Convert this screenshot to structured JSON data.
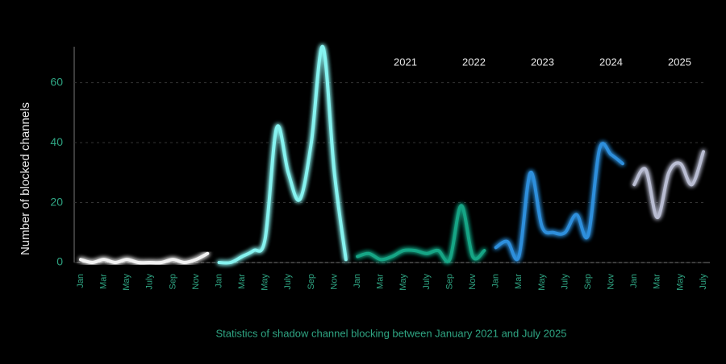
{
  "chart_data": {
    "type": "line",
    "y_label": "Number of blocked channels",
    "caption": "Statistics of shadow channel blocking between January 2021 and July 2025",
    "categories": [
      "Jan",
      null,
      "Mar",
      null,
      "May",
      null,
      "July",
      null,
      "Sep",
      null,
      "Nov",
      null,
      "Jan",
      null,
      "Mar",
      null,
      "May",
      null,
      "July",
      null,
      "Sep",
      null,
      "Nov",
      null,
      "Jan",
      null,
      "Mar",
      null,
      "May",
      null,
      "July",
      null,
      "Sep",
      null,
      "Nov",
      null,
      "Jan",
      null,
      "Mar",
      null,
      "May",
      null,
      "July",
      null,
      "Sep",
      null,
      "Nov",
      null,
      "Jan",
      null,
      "Mar",
      null,
      "May",
      null,
      "July"
    ],
    "series": [
      {
        "name": "2021",
        "color": "#f2f2f2",
        "values": [
          1,
          0,
          1,
          0,
          1,
          0,
          0,
          0,
          1,
          0,
          1,
          3,
          null,
          null,
          null,
          null,
          null,
          null,
          null,
          null,
          null,
          null,
          null,
          null,
          null,
          null,
          null,
          null,
          null,
          null,
          null,
          null,
          null,
          null,
          null,
          null,
          null,
          null,
          null,
          null,
          null,
          null,
          null,
          null,
          null,
          null,
          null,
          null,
          null,
          null,
          null,
          null,
          null,
          null,
          null
        ]
      },
      {
        "name": "2022",
        "color": "#86f3f0",
        "values": [
          null,
          null,
          null,
          null,
          null,
          null,
          null,
          null,
          null,
          null,
          null,
          null,
          0,
          0,
          2,
          4,
          8,
          45,
          30,
          21,
          40,
          72,
          30,
          1,
          null,
          null,
          null,
          null,
          null,
          null,
          null,
          null,
          null,
          null,
          null,
          null,
          null,
          null,
          null,
          null,
          null,
          null,
          null,
          null,
          null,
          null,
          null,
          null,
          null,
          null,
          null,
          null,
          null,
          null,
          null
        ]
      },
      {
        "name": "2023",
        "color": "#17a585",
        "values": [
          null,
          null,
          null,
          null,
          null,
          null,
          null,
          null,
          null,
          null,
          null,
          null,
          null,
          null,
          null,
          null,
          null,
          null,
          null,
          null,
          null,
          null,
          null,
          null,
          2,
          3,
          1,
          2,
          4,
          4,
          3,
          4,
          1,
          19,
          2,
          4,
          null,
          null,
          null,
          null,
          null,
          null,
          null,
          null,
          null,
          null,
          null,
          null,
          null,
          null,
          null,
          null,
          null,
          null,
          null
        ]
      },
      {
        "name": "2024",
        "color": "#2f8fdc",
        "values": [
          null,
          null,
          null,
          null,
          null,
          null,
          null,
          null,
          null,
          null,
          null,
          null,
          null,
          null,
          null,
          null,
          null,
          null,
          null,
          null,
          null,
          null,
          null,
          null,
          null,
          null,
          null,
          null,
          null,
          null,
          null,
          null,
          null,
          null,
          null,
          null,
          5,
          7,
          2,
          30,
          12,
          10,
          10,
          16,
          9,
          38,
          36,
          33,
          null,
          null,
          null,
          null,
          null,
          null,
          null
        ]
      },
      {
        "name": "2025",
        "color": "#b9bdd2",
        "values": [
          null,
          null,
          null,
          null,
          null,
          null,
          null,
          null,
          null,
          null,
          null,
          null,
          null,
          null,
          null,
          null,
          null,
          null,
          null,
          null,
          null,
          null,
          null,
          null,
          null,
          null,
          null,
          null,
          null,
          null,
          null,
          null,
          null,
          null,
          null,
          null,
          null,
          null,
          null,
          null,
          null,
          null,
          null,
          null,
          null,
          null,
          null,
          null,
          26,
          31,
          15,
          30,
          33,
          26,
          37
        ]
      }
    ],
    "ylim": [
      0,
      72
    ],
    "yticks": [
      0,
      20,
      40,
      60
    ],
    "grid": true,
    "legend": "top-right"
  }
}
